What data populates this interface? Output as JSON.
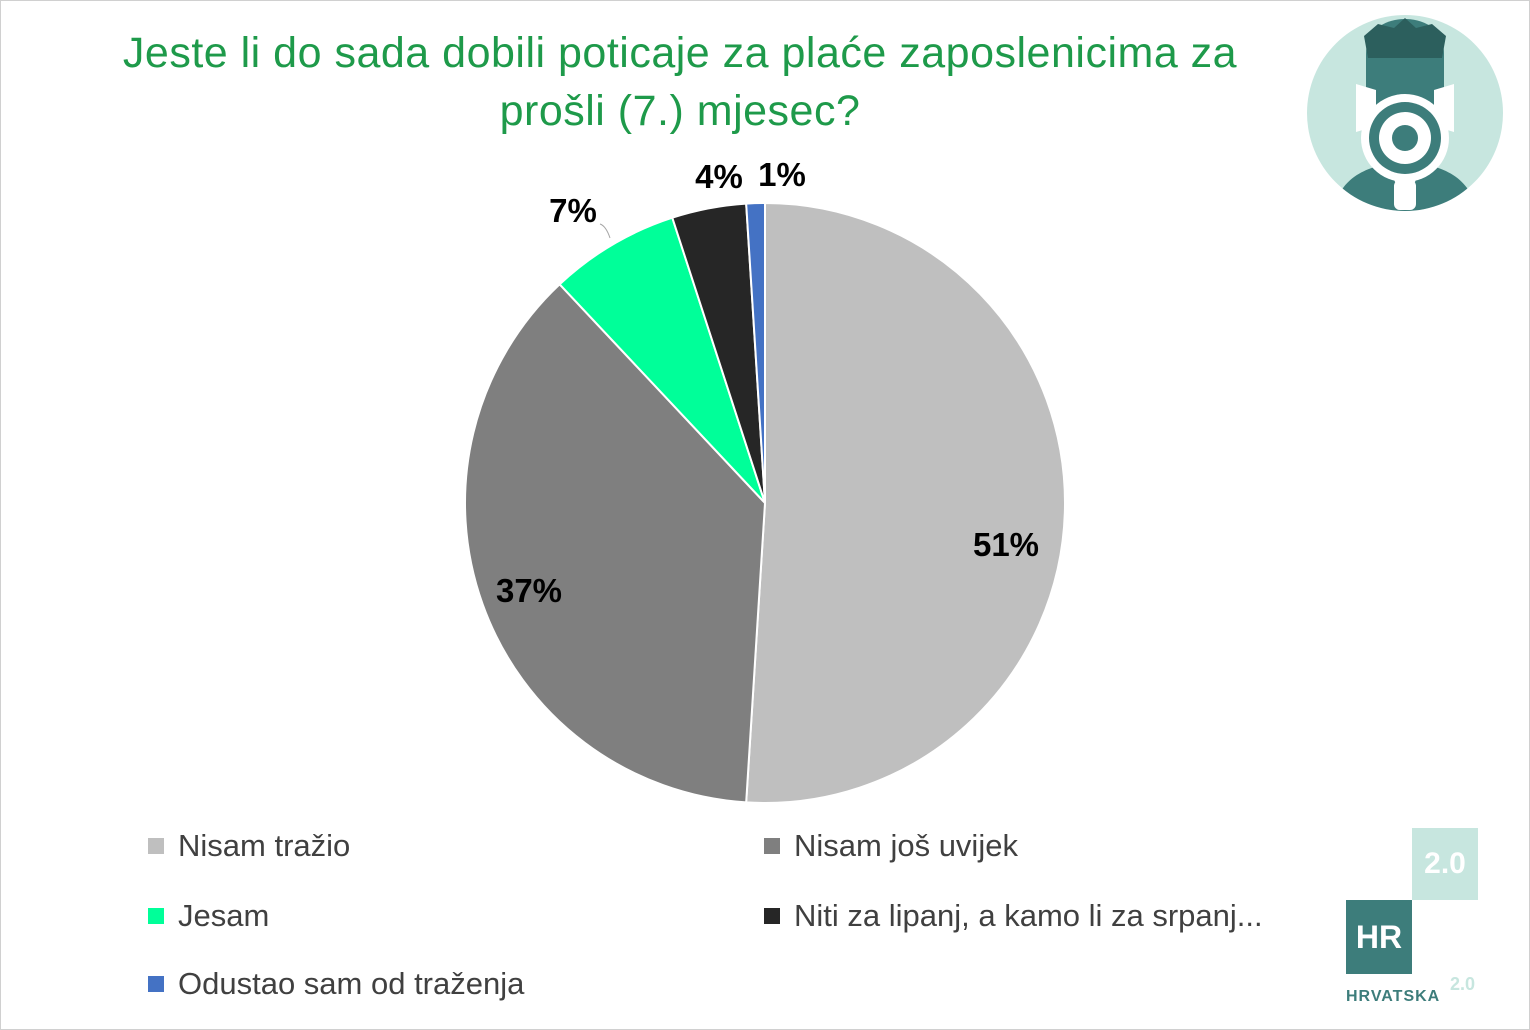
{
  "title_lines": [
    "Jeste li do sada dobili poticaje za plaće zaposlenicima za",
    "prošli (7.) mjesec?"
  ],
  "chart_data": {
    "type": "pie",
    "title": "Jeste li do sada dobili poticaje za plaće zaposlenicima za prošli (7.) mjesec?",
    "categories": [
      "Nisam tražio",
      "Nisam još uvijek",
      "Jesam",
      "Niti za lipanj, a kamo li za srpanj...",
      "Odustao sam od traženja"
    ],
    "values": [
      51,
      37,
      7,
      4,
      1
    ],
    "labels": [
      "51%",
      "37%",
      "7%",
      "4%",
      "1%"
    ],
    "colors": [
      "#bfbfbf",
      "#7f7f7f",
      "#00ff99",
      "#262626",
      "#4472c4"
    ],
    "legend": "bottom"
  },
  "logos": {
    "avatar": "megaphone-person-icon",
    "brand_box": "2.0",
    "brand_hr": "HR",
    "brand_word": "HRVATSKA",
    "brand_sup": "2.0"
  }
}
